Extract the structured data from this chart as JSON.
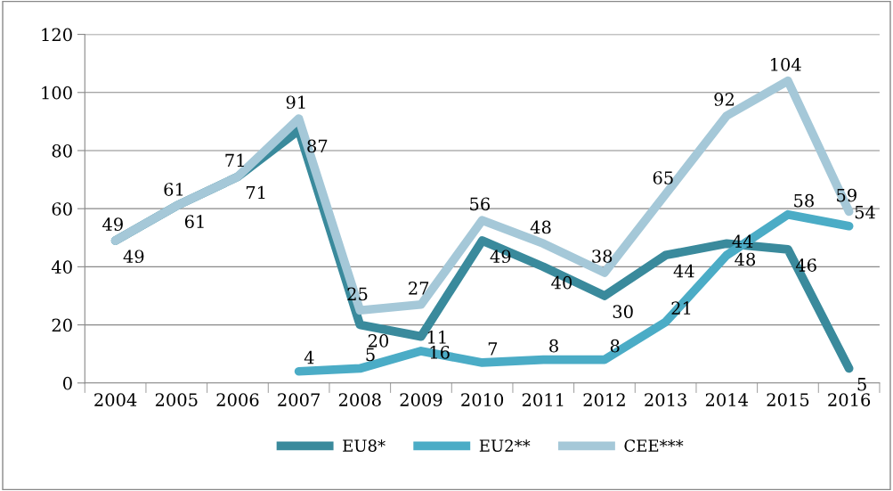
{
  "chart_data": {
    "type": "line",
    "categories": [
      "2004",
      "2005",
      "2006",
      "2007",
      "2008",
      "2009",
      "2010",
      "2011",
      "2012",
      "2013",
      "2014",
      "2015",
      "2016"
    ],
    "series": [
      {
        "name": "EU8*",
        "color": "#3a8a9c",
        "values": [
          49,
          61,
          71,
          87,
          20,
          16,
          49,
          40,
          30,
          44,
          48,
          46,
          5
        ]
      },
      {
        "name": "EU2**",
        "color": "#4bacc6",
        "values": [
          null,
          null,
          null,
          4,
          5,
          11,
          7,
          8,
          8,
          21,
          44,
          58,
          54
        ]
      },
      {
        "name": "CEE***",
        "color": "#a5c8d8",
        "values": [
          49,
          61,
          71,
          91,
          25,
          27,
          56,
          48,
          38,
          65,
          92,
          104,
          59
        ]
      }
    ],
    "ylim": [
      0,
      120
    ],
    "yticks": [
      0,
      20,
      40,
      60,
      80,
      100,
      120
    ],
    "grid": "y",
    "legend": "bottom",
    "data_labels": true,
    "marker": "none",
    "line_style": "solid"
  }
}
